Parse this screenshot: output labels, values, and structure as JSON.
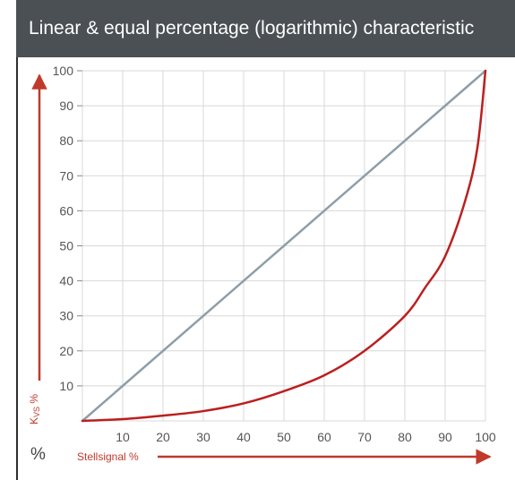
{
  "header": {
    "title": "Linear & equal percentage (logarithmic) characteristic"
  },
  "chart_data": {
    "type": "line",
    "xlim": [
      0,
      100
    ],
    "ylim": [
      0,
      100
    ],
    "grid": true,
    "x_ticks": [
      "10",
      "20",
      "30",
      "40",
      "50",
      "60",
      "70",
      "80",
      "90",
      "100"
    ],
    "y_ticks": [
      "10",
      "20",
      "30",
      "40",
      "50",
      "60",
      "70",
      "80",
      "90",
      "100"
    ],
    "xlabel": "Stellsignal %",
    "ylabel": {
      "main": "K",
      "sub": "VS",
      "suffix": " %"
    },
    "corner_label": "%",
    "colors": {
      "linear": "#8e9ea8",
      "equal_percentage": "#bb1f1f",
      "axis_arrow": "#c0392b",
      "grid": "#d8d8d8"
    },
    "series": [
      {
        "x": [
          0,
          100
        ],
        "y": [
          0,
          100
        ]
      },
      {
        "x": [
          0,
          10,
          20,
          30,
          40,
          50,
          60,
          70,
          80,
          85,
          90,
          95,
          98,
          100
        ],
        "y": [
          0,
          0.5,
          1.5,
          2.8,
          5,
          8.5,
          13,
          20,
          30,
          38,
          47,
          63,
          78,
          100
        ]
      }
    ]
  }
}
